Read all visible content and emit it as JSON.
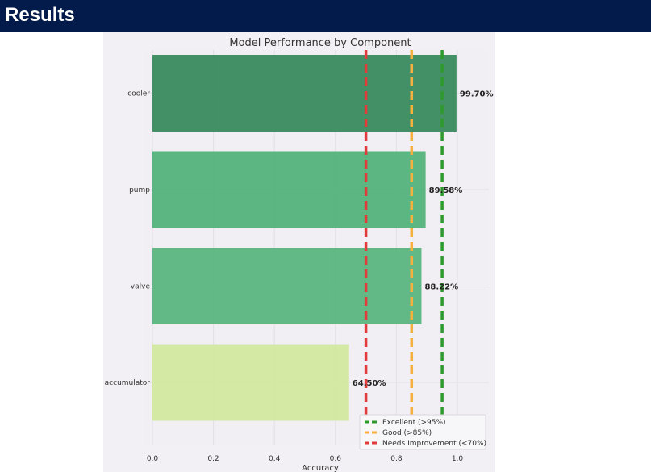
{
  "header": {
    "title": "Results"
  },
  "chart_data": {
    "type": "bar",
    "orientation": "horizontal",
    "title": "Model Performance by Component",
    "xlabel": "Accuracy",
    "ylabel": "",
    "xlim": [
      0,
      1.05
    ],
    "grid": true,
    "categories": [
      "cooler",
      "pump",
      "valve",
      "accumulator"
    ],
    "values": [
      0.997,
      0.8958,
      0.8822,
      0.645
    ],
    "value_labels": [
      "99.70%",
      "89.58%",
      "88.22%",
      "64.50%"
    ],
    "bar_colors": [
      "#3a8a5e",
      "#52b27a",
      "#5ab57f",
      "#d2e89f"
    ],
    "x_ticks": [
      0.0,
      0.2,
      0.4,
      0.6,
      0.8,
      1.0
    ],
    "x_tick_labels": [
      "0.0",
      "0.2",
      "0.4",
      "0.6",
      "0.8",
      "1.0"
    ],
    "thresholds": [
      {
        "value": 0.95,
        "label": "Excellent (>95%)",
        "color": "#2e9a2e"
      },
      {
        "value": 0.85,
        "label": "Good (>85%)",
        "color": "#f5b040"
      },
      {
        "value": 0.7,
        "label": "Needs Improvement (<70%)",
        "color": "#e23b3b"
      }
    ],
    "legend_position": "bottom-right"
  }
}
